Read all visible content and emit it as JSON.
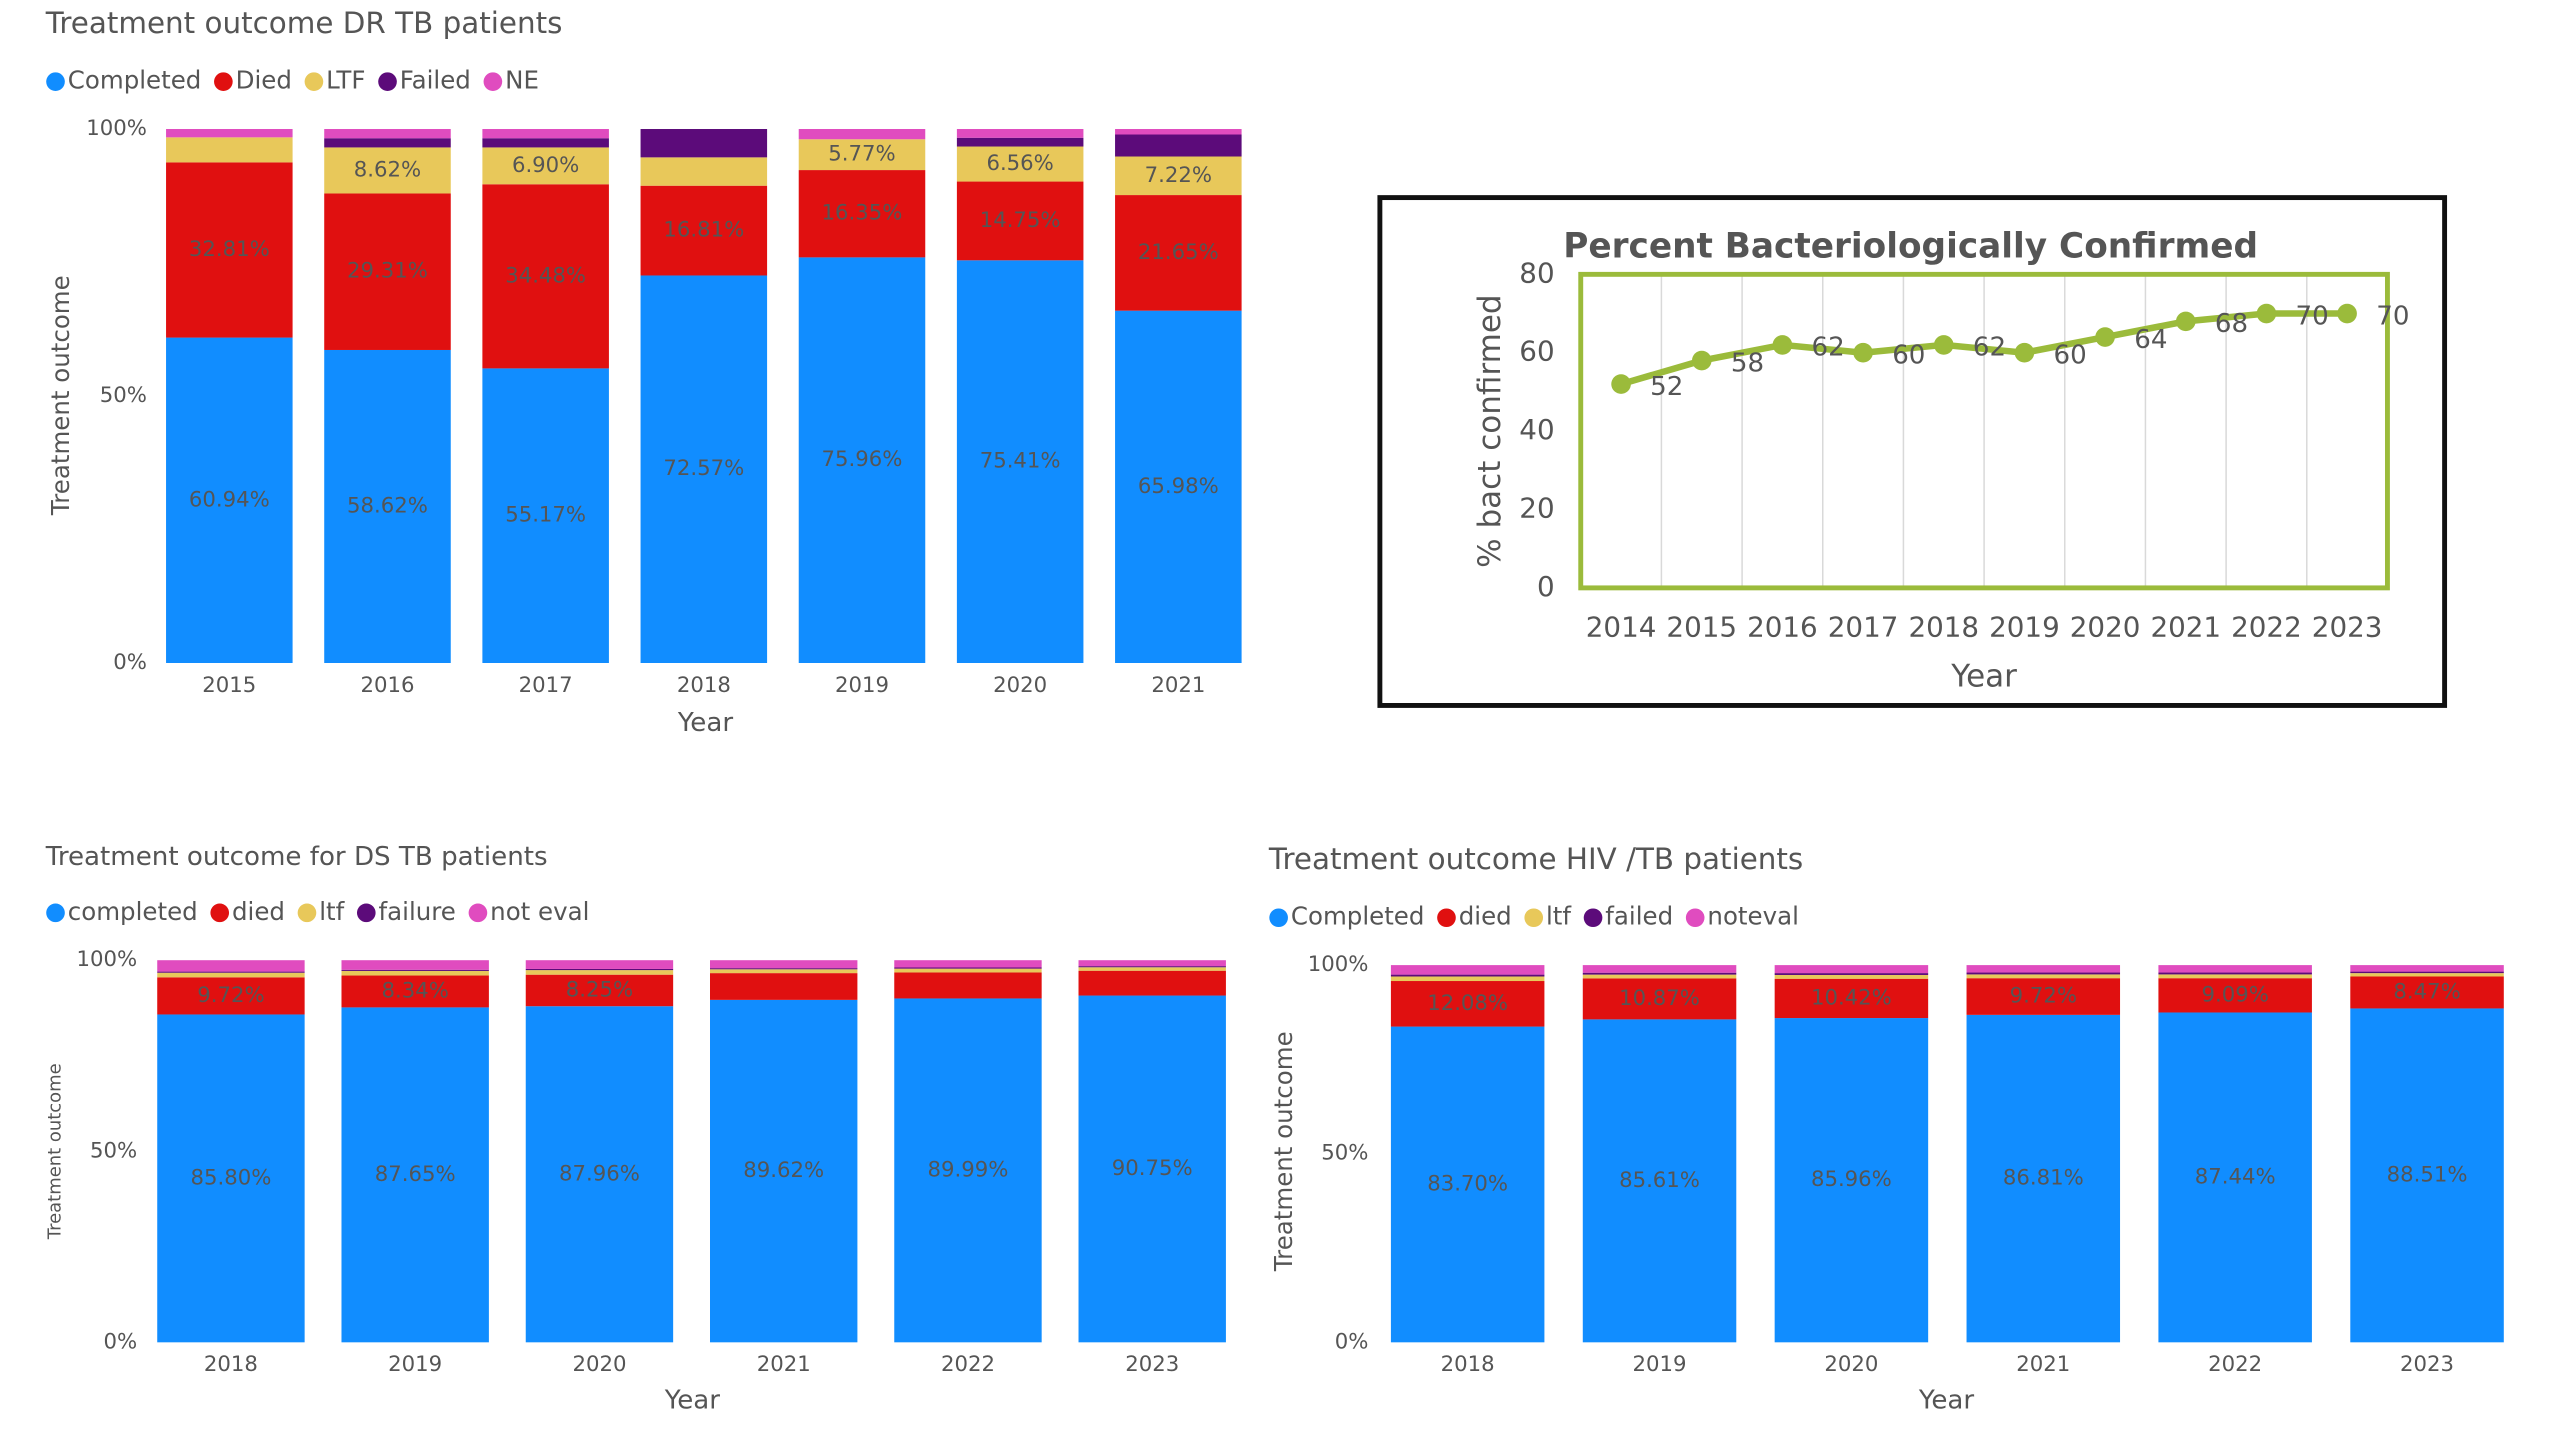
{
  "chart_data": [
    {
      "type": "bar",
      "stacked": true,
      "title": "Treatment outcome DR TB patients",
      "x_label": "Year",
      "y_label": "Treatment outcome",
      "legend": "top-left",
      "categories": [
        "2015",
        "2016",
        "2017",
        "2018",
        "2019",
        "2020",
        "2021"
      ],
      "series": [
        {
          "name": "Completed",
          "color": "#118dff",
          "values": [
            60.94,
            58.62,
            55.17,
            72.57,
            75.96,
            75.41,
            65.98
          ],
          "value_labels": [
            "60.94%",
            "58.62%",
            "55.17%",
            "72.57%",
            "75.96%",
            "75.41%",
            "65.98%"
          ]
        },
        {
          "name": "Died",
          "color": "#e01010",
          "values": [
            32.81,
            29.31,
            34.48,
            16.81,
            16.35,
            14.75,
            21.65
          ],
          "value_labels": [
            "32.81%",
            "29.31%",
            "34.48%",
            "16.81%",
            "16.35%",
            "14.75%",
            "21.65%"
          ]
        },
        {
          "name": "LTF",
          "color": "#e8c85a",
          "values": [
            4.69,
            8.62,
            6.9,
            5.31,
            5.77,
            6.56,
            7.22
          ],
          "value_labels": [
            null,
            "8.62%",
            "6.90%",
            null,
            "5.77%",
            "6.56%",
            "7.22%"
          ]
        },
        {
          "name": "Failed",
          "color": "#5c0b7a",
          "values": [
            0,
            1.72,
            1.72,
            5.31,
            0,
            1.64,
            4.12
          ]
        },
        {
          "name": "NE",
          "color": "#e04cbf",
          "values": [
            1.56,
            1.73,
            1.73,
            0,
            1.92,
            1.64,
            1.03
          ]
        }
      ],
      "ylim": [
        0,
        100
      ],
      "yticks": [
        {
          "value": 0,
          "label": "0%"
        },
        {
          "value": 50,
          "label": "50%"
        },
        {
          "value": 100,
          "label": "100%"
        }
      ],
      "grid": false
    },
    {
      "type": "line",
      "title": "Percent Bacteriologically Confirmed",
      "x_label": "Year",
      "y_label": "% bact confirmed",
      "categories": [
        "2014",
        "2015",
        "2016",
        "2017",
        "2018",
        "2019",
        "2020",
        "2021",
        "2022",
        "2023"
      ],
      "series": [
        {
          "name": "% bact confirmed",
          "color": "#9bbb3b",
          "values": [
            52,
            58,
            62,
            60,
            62,
            60,
            64,
            68,
            70,
            70
          ]
        }
      ],
      "data_labels": true,
      "ylim": [
        0,
        80
      ],
      "yticks": [
        0,
        20,
        40,
        60,
        80
      ],
      "grid": false
    },
    {
      "type": "bar",
      "stacked": true,
      "title": "Treatment outcome for DS TB patients",
      "x_label": "Year",
      "y_label": "Treatment outcome",
      "legend": "top-left",
      "categories": [
        "2018",
        "2019",
        "2020",
        "2021",
        "2022",
        "2023"
      ],
      "series": [
        {
          "name": "completed",
          "color": "#118dff",
          "values": [
            85.8,
            87.65,
            87.96,
            89.62,
            89.99,
            90.75
          ],
          "value_labels": [
            "85.80%",
            "87.65%",
            "87.96%",
            "89.62%",
            "89.99%",
            "90.75%"
          ]
        },
        {
          "name": "died",
          "color": "#e01010",
          "values": [
            9.72,
            8.34,
            8.25,
            7.0,
            6.8,
            6.5
          ],
          "value_labels": [
            "9.72%",
            "8.34%",
            "8.25%",
            null,
            null,
            null
          ]
        },
        {
          "name": "ltf",
          "color": "#e8c85a",
          "values": [
            1.2,
            1.2,
            1.2,
            1.0,
            1.0,
            0.9
          ]
        },
        {
          "name": "failure",
          "color": "#5c0b7a",
          "values": [
            0.3,
            0.3,
            0.3,
            0.3,
            0.3,
            0.3
          ]
        },
        {
          "name": "not eval",
          "color": "#e04cbf",
          "values": [
            2.98,
            2.51,
            2.29,
            2.08,
            1.91,
            1.55
          ]
        }
      ],
      "ylim": [
        0,
        100
      ],
      "yticks": [
        {
          "value": 0,
          "label": "0%"
        },
        {
          "value": 50,
          "label": "50%"
        },
        {
          "value": 100,
          "label": "100%"
        }
      ],
      "grid": false
    },
    {
      "type": "bar",
      "stacked": true,
      "title": "Treatment outcome HIV /TB patients",
      "x_label": "Year",
      "y_label": "Treatment outcome",
      "legend": "top-left",
      "categories": [
        "2018",
        "2019",
        "2020",
        "2021",
        "2022",
        "2023"
      ],
      "series": [
        {
          "name": "Completed",
          "color": "#118dff",
          "values": [
            83.7,
            85.61,
            85.96,
            86.81,
            87.44,
            88.51
          ],
          "value_labels": [
            "83.70%",
            "85.61%",
            "85.96%",
            "86.81%",
            "87.44%",
            "88.51%"
          ]
        },
        {
          "name": "died",
          "color": "#e01010",
          "values": [
            12.08,
            10.87,
            10.42,
            9.72,
            9.09,
            8.47
          ],
          "value_labels": [
            "12.08%",
            "10.87%",
            "10.42%",
            "9.72%",
            "9.09%",
            "8.47%"
          ]
        },
        {
          "name": "ltf",
          "color": "#e8c85a",
          "values": [
            1.2,
            1.0,
            1.0,
            1.0,
            1.0,
            0.9
          ]
        },
        {
          "name": "failed",
          "color": "#5c0b7a",
          "values": [
            0.5,
            0.5,
            0.5,
            0.5,
            0.5,
            0.4
          ]
        },
        {
          "name": "noteval",
          "color": "#e04cbf",
          "values": [
            2.52,
            2.02,
            2.12,
            1.97,
            1.97,
            1.72
          ]
        }
      ],
      "ylim": [
        0,
        100
      ],
      "yticks": [
        {
          "value": 0,
          "label": "0%"
        },
        {
          "value": 50,
          "label": "50%"
        },
        {
          "value": 100,
          "label": "100%"
        }
      ],
      "grid": false
    }
  ]
}
